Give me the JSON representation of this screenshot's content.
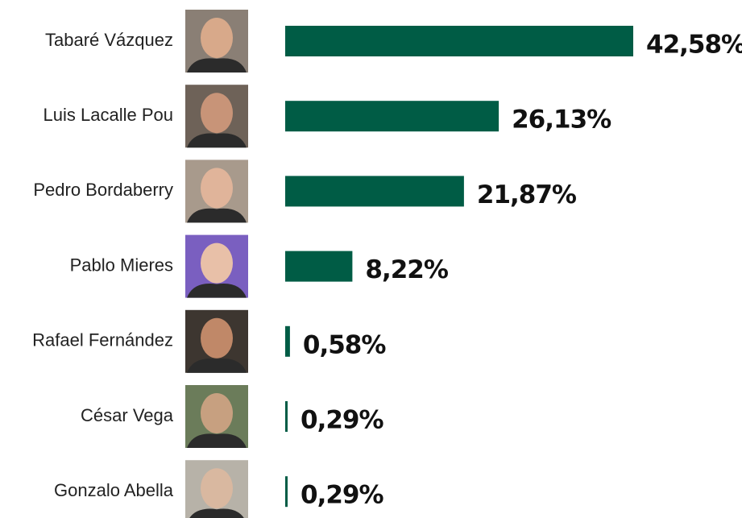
{
  "chart_data": {
    "type": "bar",
    "orientation": "horizontal",
    "categories": [
      "Tabaré Vázquez",
      "Luis Lacalle Pou",
      "Pedro Bordaberry",
      "Pablo Mieres",
      "Rafael Fernández",
      "César Vega",
      "Gonzalo Abella"
    ],
    "values": [
      42.58,
      26.13,
      21.87,
      8.22,
      0.58,
      0.29,
      0.29
    ],
    "value_labels": [
      "42,58%",
      "26,13%",
      "21,87%",
      "8,22%",
      "0,58%",
      "0,29%",
      "0,29%"
    ],
    "color": "#005c45"
  }
}
